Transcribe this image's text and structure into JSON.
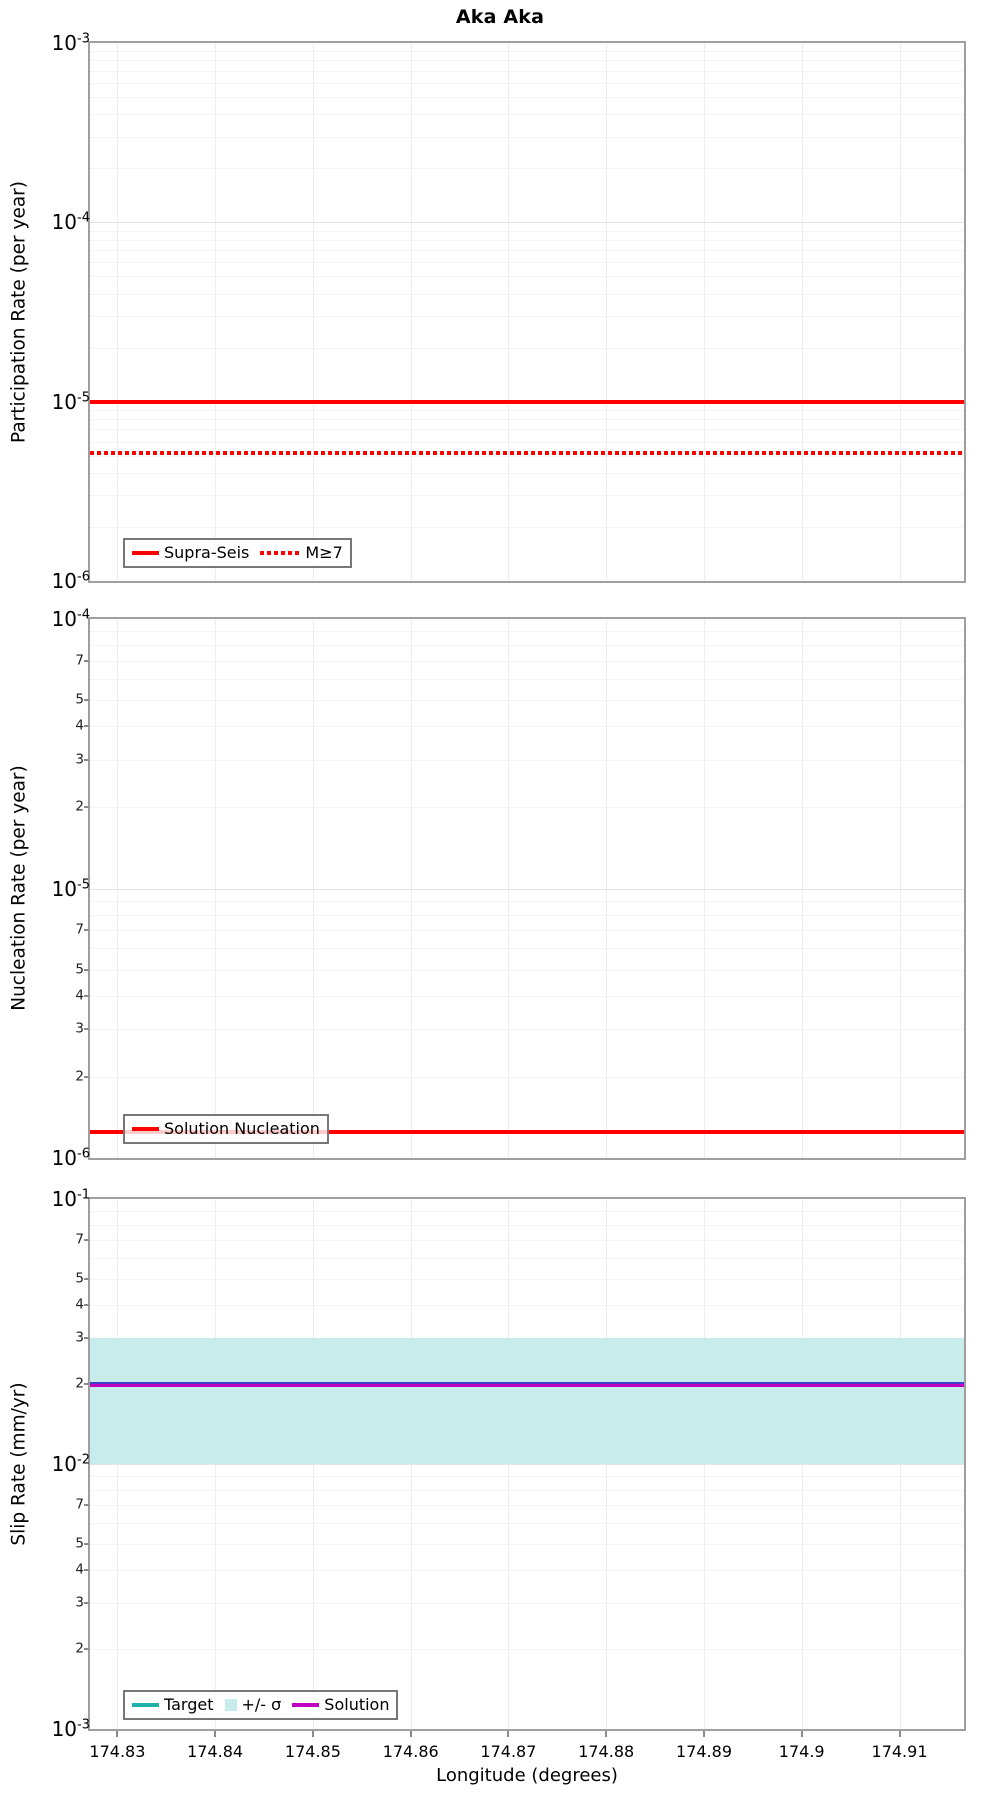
{
  "figure": {
    "background": "#ffffff",
    "plot_border_color": "#9f9f9f",
    "grid": true
  },
  "xaxis": {
    "label": "Longitude (degrees)",
    "min": 174.8272,
    "max": 174.9166,
    "ticks": [
      {
        "value": 174.83,
        "label": "174.83"
      },
      {
        "value": 174.84,
        "label": "174.84"
      },
      {
        "value": 174.85,
        "label": "174.85"
      },
      {
        "value": 174.86,
        "label": "174.86"
      },
      {
        "value": 174.87,
        "label": "174.87"
      },
      {
        "value": 174.88,
        "label": "174.88"
      },
      {
        "value": 174.89,
        "label": "174.89"
      },
      {
        "value": 174.9,
        "label": "174.9"
      },
      {
        "value": 174.91,
        "label": "174.91"
      }
    ]
  },
  "chart_data": [
    {
      "type": "line",
      "title": "Aka Aka",
      "ylabel": "Participation Rate (per year)",
      "xlabel": "",
      "y_scale": "log",
      "y_exponent_top": -3,
      "y_exponent_bottom": -6,
      "y_major_tick_labels": [
        "10^-3",
        "10^-4",
        "10^-5",
        "10^-6"
      ],
      "y_minor_tick_labels": [],
      "x_range": [
        174.8272,
        174.9166
      ],
      "legend_position": "bottom-left",
      "series": [
        {
          "name": "Supra-Seis",
          "type": "hline",
          "y": 1e-05,
          "color": "#ff0000",
          "line_style": "solid",
          "line_width": 4
        },
        {
          "name": "M≥7",
          "type": "hline",
          "y": 5.2e-06,
          "color": "#ff0000",
          "line_style": "dotted",
          "line_width": 4
        }
      ]
    },
    {
      "type": "line",
      "title": "",
      "ylabel": "Nucleation Rate (per year)",
      "xlabel": "",
      "y_scale": "log",
      "y_exponent_top": -4,
      "y_exponent_bottom": -6,
      "y_major_tick_labels": [
        "10^-4",
        "10^-5",
        "10^-6"
      ],
      "y_minor_tick_labels": [
        7,
        5,
        4,
        3,
        2
      ],
      "x_range": [
        174.8272,
        174.9166
      ],
      "legend_position": "bottom-left",
      "series": [
        {
          "name": "Solution Nucleation",
          "type": "hline",
          "y": 1.25e-06,
          "color": "#ff0000",
          "line_style": "solid",
          "line_width": 4
        }
      ]
    },
    {
      "type": "line",
      "title": "",
      "ylabel": "Slip Rate (mm/yr)",
      "xlabel": "Longitude (degrees)",
      "y_scale": "log",
      "y_exponent_top": -1,
      "y_exponent_bottom": -3,
      "y_major_tick_labels": [
        "10^-1",
        "10^-2",
        "10^-3"
      ],
      "y_minor_tick_labels": [
        7,
        5,
        4,
        3,
        2
      ],
      "x_range": [
        174.8272,
        174.9166
      ],
      "legend_position": "bottom-left",
      "band": {
        "name": "+/- σ",
        "low": 0.01,
        "high": 0.03,
        "color": "#c8ebeb"
      },
      "series": [
        {
          "name": "Target",
          "type": "hline",
          "y": 0.02,
          "color": "#20b2aa",
          "line_style": "solid",
          "line_width": 4
        },
        {
          "name": "Solution",
          "type": "hline",
          "y": 0.02,
          "color": "#c000c0",
          "line_style": "solid",
          "line_width": 3,
          "overlap_edge_color": "#4040cc"
        }
      ]
    }
  ]
}
